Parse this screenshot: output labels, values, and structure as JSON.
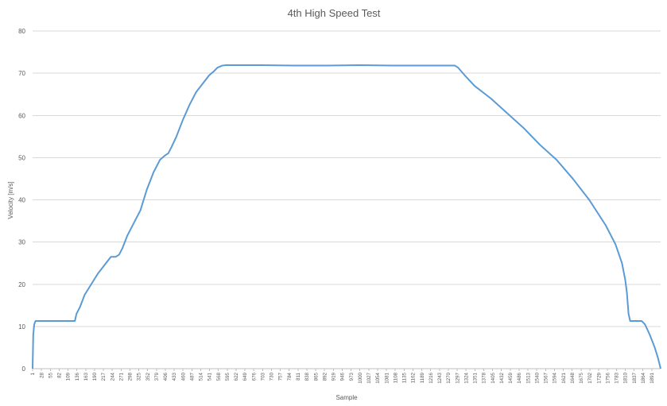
{
  "chart_data": {
    "type": "line",
    "title": "4th High Speed Test",
    "xlabel": "Sample",
    "ylabel": "Velocity [m/s]",
    "ylim": [
      0,
      80
    ],
    "yticks": [
      0,
      10,
      20,
      30,
      40,
      50,
      60,
      70,
      80
    ],
    "xlim": [
      1,
      1918
    ],
    "xticks": [
      1,
      28,
      55,
      82,
      109,
      136,
      163,
      190,
      217,
      244,
      271,
      298,
      325,
      352,
      379,
      406,
      433,
      460,
      487,
      514,
      541,
      568,
      595,
      622,
      649,
      676,
      703,
      730,
      757,
      784,
      811,
      838,
      865,
      892,
      919,
      946,
      973,
      1000,
      1027,
      1054,
      1081,
      1108,
      1135,
      1162,
      1189,
      1216,
      1243,
      1270,
      1297,
      1324,
      1351,
      1378,
      1405,
      1432,
      1459,
      1486,
      1513,
      1540,
      1567,
      1594,
      1621,
      1648,
      1675,
      1702,
      1729,
      1756,
      1783,
      1810,
      1837,
      1864,
      1891
    ],
    "grid": true,
    "legend": "none",
    "series": [
      {
        "color": "#5b9bd5",
        "x": [
          1,
          3,
          6,
          10,
          130,
          135,
          145,
          160,
          180,
          200,
          220,
          240,
          255,
          265,
          275,
          290,
          310,
          330,
          350,
          370,
          390,
          405,
          415,
          425,
          440,
          460,
          480,
          500,
          520,
          540,
          555,
          565,
          580,
          590,
          600,
          610,
          700,
          800,
          900,
          1000,
          1100,
          1200,
          1290,
          1300,
          1320,
          1350,
          1400,
          1450,
          1500,
          1550,
          1600,
          1650,
          1700,
          1750,
          1780,
          1800,
          1810,
          1815,
          1820,
          1825,
          1830,
          1845,
          1860,
          1870,
          1885,
          1900,
          1910,
          1918
        ],
        "y": [
          0,
          8,
          10.5,
          11.3,
          11.3,
          13,
          14.5,
          17.5,
          20,
          22.5,
          24.5,
          26.5,
          26.5,
          27,
          28.5,
          31.5,
          34.5,
          37.5,
          42.5,
          46.5,
          49.5,
          50.5,
          51,
          52.5,
          55,
          59,
          62.5,
          65.5,
          67.5,
          69.5,
          70.5,
          71.3,
          71.8,
          71.9,
          71.9,
          71.9,
          71.9,
          71.8,
          71.8,
          71.9,
          71.8,
          71.8,
          71.8,
          71.3,
          69.5,
          67,
          64,
          60.5,
          57,
          53,
          49.5,
          45,
          40,
          34,
          29.5,
          25,
          21,
          18,
          13,
          11.3,
          11.3,
          11.3,
          11.3,
          10.5,
          8,
          5,
          2.5,
          0
        ]
      }
    ]
  }
}
